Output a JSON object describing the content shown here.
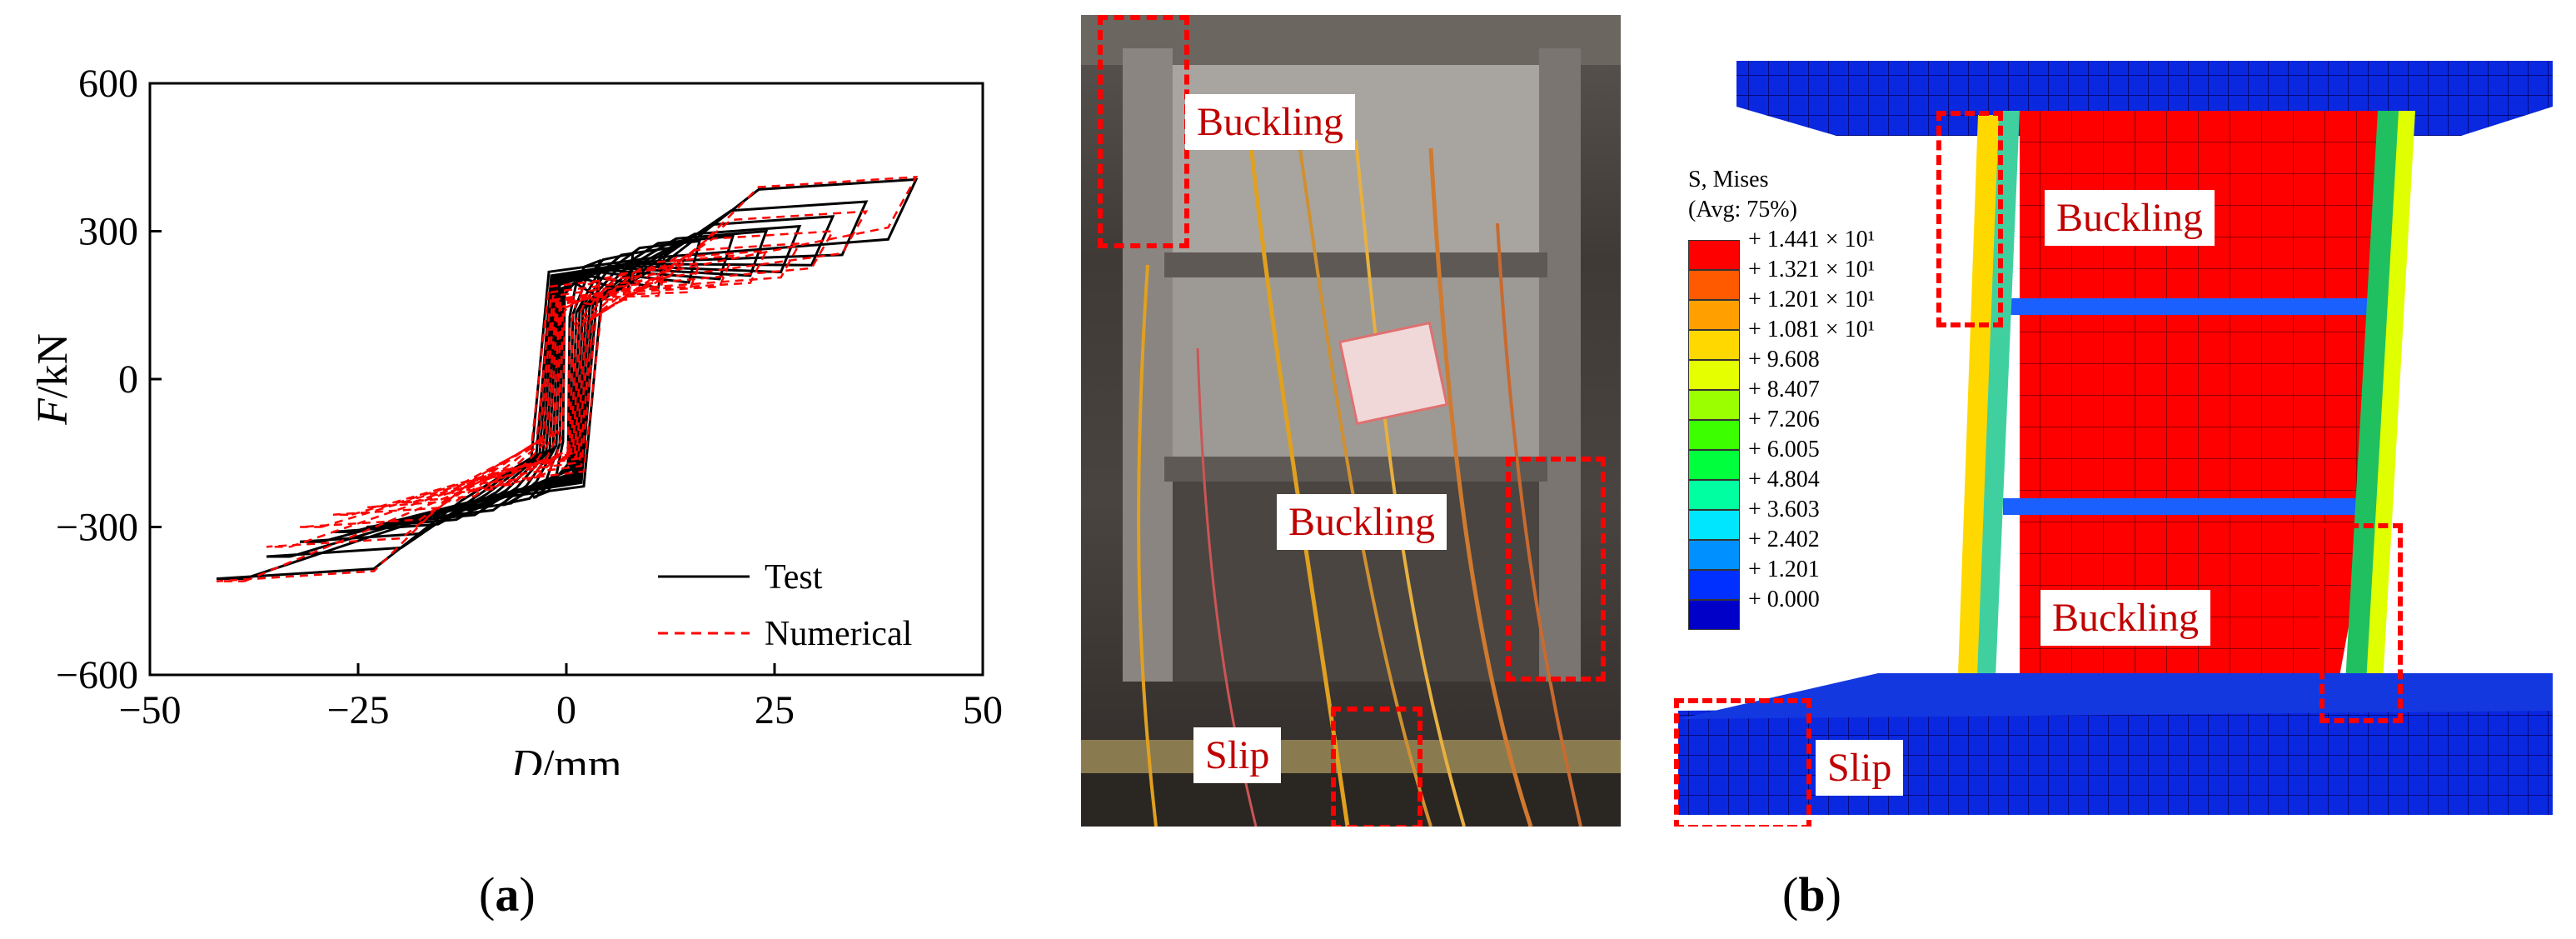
{
  "panel_a_label": "a",
  "panel_b_label": "b",
  "chart_data": {
    "type": "line",
    "title": "",
    "xlabel_var": "D",
    "xlabel_unit": "/mm",
    "ylabel_var": "F",
    "ylabel_unit": "/kN",
    "xlim": [
      -50,
      50
    ],
    "ylim": [
      -600,
      600
    ],
    "xticks": [
      -50,
      -25,
      0,
      25,
      50
    ],
    "xtick_labels": [
      "−50",
      "−25",
      "0",
      "25",
      "50"
    ],
    "yticks": [
      -600,
      -300,
      0,
      300,
      600
    ],
    "ytick_labels": [
      "−600",
      "−300",
      "0",
      "300",
      "600"
    ],
    "grid": false,
    "legend_position": "bottom-right",
    "series": [
      {
        "name": "Test",
        "color": "#000000",
        "style": "solid",
        "loops": [
          {
            "amp": 4,
            "fy": 240,
            "fr": 230
          },
          {
            "amp": 8,
            "fy": 255,
            "fr": 240
          },
          {
            "amp": 12,
            "fy": 265,
            "fr": 245
          },
          {
            "amp": 16,
            "fy": 280,
            "fr": 255
          },
          {
            "amp": 20,
            "fy": 290,
            "fr": 260
          },
          {
            "amp": 24,
            "fy": 300,
            "fr": 265
          },
          {
            "amp": 28,
            "fy": 310,
            "fr": 270
          },
          {
            "amp": 32,
            "fy": 330,
            "fr": 275
          },
          {
            "amp": 36,
            "fy": 360,
            "fr": 280
          },
          {
            "amp": 42,
            "fy": 405,
            "fr": 290
          }
        ]
      },
      {
        "name": "Numerical",
        "color": "#ff0000",
        "style": "dashed",
        "loops": [
          {
            "amp": 4,
            "fy": 200,
            "fr": 185
          },
          {
            "amp": 8,
            "fy": 215,
            "fr": 190
          },
          {
            "amp": 12,
            "fy": 225,
            "fr": 195
          },
          {
            "amp": 16,
            "fy": 235,
            "fr": 200
          },
          {
            "amp": 20,
            "fy": 250,
            "fr": 205
          },
          {
            "amp": 24,
            "fy": 260,
            "fr": 210
          },
          {
            "amp": 28,
            "fy": 275,
            "fr": 215
          },
          {
            "amp": 32,
            "fy": 300,
            "fr": 225
          },
          {
            "amp": 36,
            "fy": 340,
            "fr": 235
          },
          {
            "amp": 42,
            "fy": 410,
            "fr": 250
          }
        ]
      }
    ]
  },
  "photo_labels": {
    "buckling_top": "Buckling",
    "buckling_mid": "Buckling",
    "slip": "Slip"
  },
  "fe_labels": {
    "buckling_top": "Buckling",
    "buckling_bottom": "Buckling",
    "slip": "Slip"
  },
  "fe_legend": {
    "title_line1": "S, Mises",
    "title_line2": "(Avg: 75%)",
    "entries": [
      {
        "label": "+ 1.441 × 10¹",
        "color": "#ff0000"
      },
      {
        "label": "+ 1.321 × 10¹",
        "color": "#ff5a00"
      },
      {
        "label": "+ 1.201 × 10¹",
        "color": "#ffa000"
      },
      {
        "label": "+ 1.081 × 10¹",
        "color": "#ffd800"
      },
      {
        "label": "+ 9.608",
        "color": "#e6ff00"
      },
      {
        "label": "+ 8.407",
        "color": "#9cff00"
      },
      {
        "label": "+ 7.206",
        "color": "#3cff00"
      },
      {
        "label": "+ 6.005",
        "color": "#00ff3c"
      },
      {
        "label": "+ 4.804",
        "color": "#00ffa0"
      },
      {
        "label": "+ 3.603",
        "color": "#00e6ff"
      },
      {
        "label": "+ 2.402",
        "color": "#0090ff"
      },
      {
        "label": "+ 1.201",
        "color": "#0030ff"
      },
      {
        "label": "+ 0.000",
        "color": "#0000c8"
      }
    ]
  }
}
